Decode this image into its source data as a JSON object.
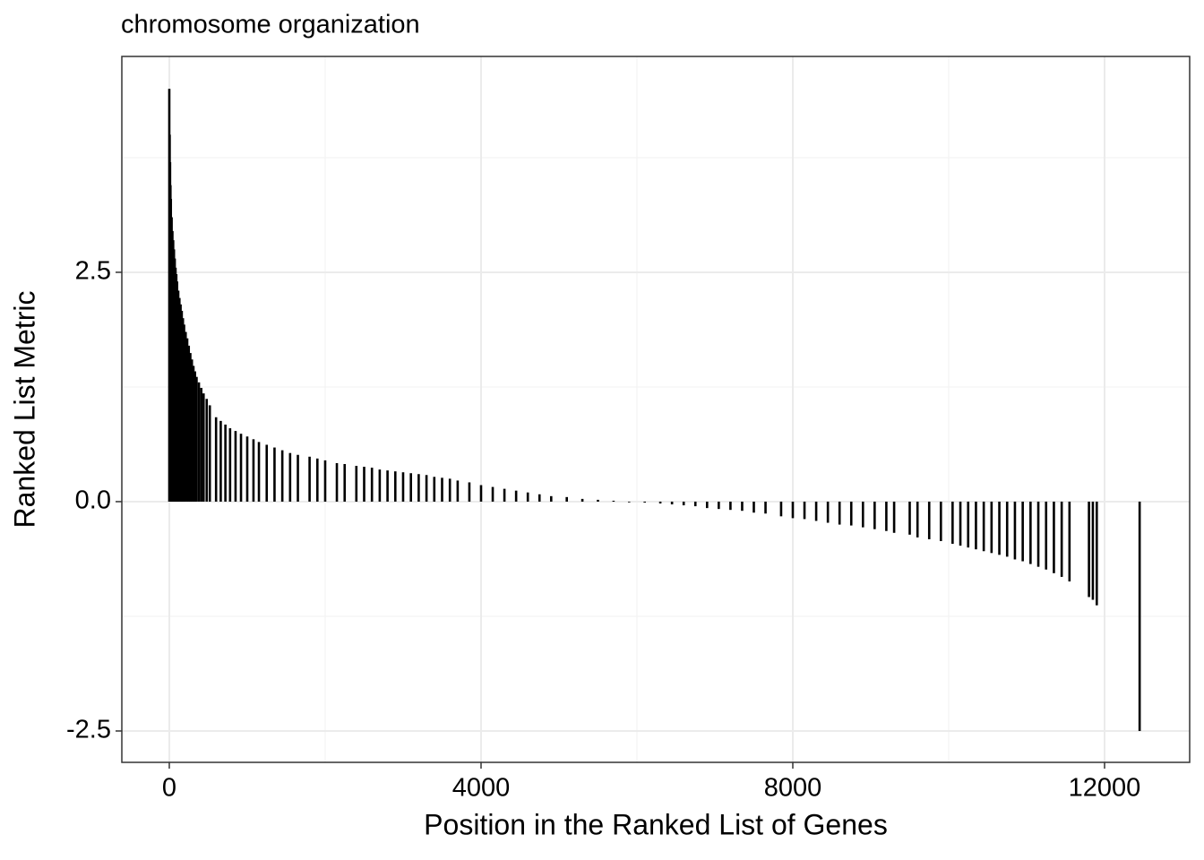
{
  "chart_data": {
    "type": "bar",
    "title": "chromosome organization",
    "x_label": "Position in the Ranked List of Genes",
    "y_label": "Ranked List Metric",
    "color": "#000000",
    "x": [
      0,
      5,
      10,
      15,
      20,
      30,
      40,
      50,
      60,
      70,
      80,
      90,
      100,
      115,
      130,
      145,
      160,
      175,
      190,
      210,
      230,
      250,
      270,
      290,
      310,
      330,
      350,
      380,
      410,
      440,
      480,
      520,
      600,
      660,
      720,
      780,
      850,
      920,
      1000,
      1080,
      1150,
      1250,
      1350,
      1450,
      1550,
      1650,
      1800,
      1900,
      2000,
      2150,
      2250,
      2400,
      2500,
      2600,
      2700,
      2800,
      2900,
      3000,
      3100,
      3200,
      3300,
      3400,
      3500,
      3600,
      3700,
      3850,
      4000,
      4150,
      4300,
      4450,
      4600,
      4750,
      4900,
      5100,
      5300,
      5500,
      5700,
      5900,
      6100,
      6300,
      6450,
      6600,
      6750,
      6900,
      7050,
      7200,
      7350,
      7500,
      7650,
      7850,
      8000,
      8150,
      8300,
      8450,
      8600,
      8750,
      8900,
      9050,
      9200,
      9300,
      9500,
      9600,
      9750,
      9900,
      10050,
      10150,
      10250,
      10350,
      10450,
      10550,
      10650,
      10750,
      10850,
      10950,
      11050,
      11150,
      11250,
      11350,
      11450,
      11550,
      11800,
      11850,
      11900,
      12450
    ],
    "values": [
      4.5,
      4.0,
      3.7,
      3.45,
      3.3,
      3.1,
      2.95,
      2.85,
      2.75,
      2.65,
      2.55,
      2.48,
      2.4,
      2.3,
      2.22,
      2.15,
      2.08,
      2.0,
      1.93,
      1.85,
      1.78,
      1.7,
      1.62,
      1.55,
      1.48,
      1.42,
      1.36,
      1.3,
      1.24,
      1.18,
      1.12,
      1.05,
      0.92,
      0.88,
      0.84,
      0.8,
      0.77,
      0.74,
      0.71,
      0.68,
      0.65,
      0.62,
      0.59,
      0.56,
      0.53,
      0.51,
      0.49,
      0.47,
      0.45,
      0.42,
      0.41,
      0.39,
      0.38,
      0.37,
      0.35,
      0.34,
      0.33,
      0.32,
      0.31,
      0.3,
      0.29,
      0.27,
      0.26,
      0.25,
      0.23,
      0.21,
      0.18,
      0.16,
      0.14,
      0.12,
      0.1,
      0.08,
      0.06,
      0.05,
      0.03,
      0.02,
      0.01,
      0.0,
      -0.01,
      -0.02,
      -0.03,
      -0.04,
      -0.05,
      -0.07,
      -0.08,
      -0.09,
      -0.1,
      -0.12,
      -0.13,
      -0.16,
      -0.18,
      -0.19,
      -0.21,
      -0.23,
      -0.25,
      -0.26,
      -0.28,
      -0.3,
      -0.32,
      -0.34,
      -0.36,
      -0.39,
      -0.41,
      -0.43,
      -0.46,
      -0.48,
      -0.5,
      -0.52,
      -0.54,
      -0.56,
      -0.58,
      -0.6,
      -0.63,
      -0.65,
      -0.68,
      -0.71,
      -0.74,
      -0.78,
      -0.82,
      -0.87,
      -1.04,
      -1.07,
      -1.13,
      -2.5
    ],
    "xlim": [
      -609,
      13092
    ],
    "xticks": [
      0,
      4000,
      8000,
      12000
    ],
    "xminor": [
      2000,
      6000,
      10000
    ],
    "ylim": [
      -2.842,
      4.853
    ],
    "yticks": [
      {
        "value": 2.5,
        "label": "2.5"
      },
      {
        "value": 0,
        "label": "0.0"
      },
      {
        "value": -2.5,
        "label": "-2.5"
      }
    ],
    "yminor": [
      3.75,
      1.25,
      -1.25
    ],
    "grid": true
  }
}
